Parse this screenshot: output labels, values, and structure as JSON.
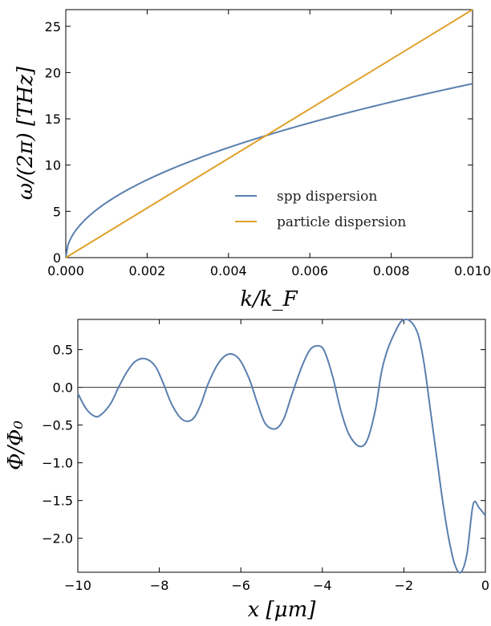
{
  "chart_data": [
    {
      "type": "line",
      "xlabel": "k/k_F",
      "ylabel": "ω/(2π) [THz]",
      "xlim": [
        0,
        0.01
      ],
      "ylim": [
        0,
        26.8
      ],
      "xticks": [
        "0.000",
        "0.002",
        "0.004",
        "0.006",
        "0.008",
        "0.010"
      ],
      "xtick_values": [
        0,
        0.002,
        0.004,
        0.006,
        0.008,
        0.01
      ],
      "yticks": [
        "0",
        "5",
        "10",
        "15",
        "20",
        "25"
      ],
      "ytick_values": [
        0,
        5,
        10,
        15,
        20,
        25
      ],
      "grid": false,
      "legend_position": "bottom-right",
      "series": [
        {
          "name": "spp dispersion",
          "color": "#5a7fae",
          "x": [
            0,
            0.0002,
            0.0005,
            0.001,
            0.0015,
            0.002,
            0.003,
            0.004,
            0.005,
            0.006,
            0.007,
            0.008,
            0.009,
            0.01
          ],
          "y": [
            0,
            2.65,
            4.2,
            5.9,
            7.25,
            8.4,
            10.3,
            11.9,
            13.3,
            14.6,
            15.7,
            16.8,
            17.8,
            18.8
          ]
        },
        {
          "name": "particle dispersion",
          "color": "#e0a12a",
          "x": [
            0,
            0.01
          ],
          "y": [
            0,
            26.8
          ]
        }
      ]
    },
    {
      "type": "line",
      "xlabel": "x [μm]",
      "ylabel": "Φ/Φ₀",
      "xlim": [
        -10,
        0
      ],
      "ylim": [
        -2.45,
        0.9
      ],
      "xticks": [
        "−10",
        "−8",
        "−6",
        "−4",
        "−2",
        "0"
      ],
      "xtick_values": [
        -10,
        -8,
        -6,
        -4,
        -2,
        0
      ],
      "yticks": [
        "0.5",
        "0.0",
        "−0.5",
        "−1.0",
        "−1.5",
        "−2.0"
      ],
      "ytick_values": [
        0.5,
        0,
        -0.5,
        -1,
        -1.5,
        -2
      ],
      "grid": false,
      "reference_line_y": 0,
      "series": [
        {
          "color": "#5a7fae",
          "x": [
            -10,
            -9.8,
            -9.6,
            -9.45,
            -9.2,
            -9.0,
            -8.8,
            -8.6,
            -8.35,
            -8.1,
            -7.9,
            -7.7,
            -7.45,
            -7.2,
            -7.0,
            -6.8,
            -6.55,
            -6.3,
            -6.05,
            -5.8,
            -5.6,
            -5.4,
            -5.15,
            -4.95,
            -4.75,
            -4.5,
            -4.3,
            -4.1,
            -3.95,
            -3.75,
            -3.55,
            -3.35,
            -3.1,
            -2.9,
            -2.7,
            -2.55,
            -2.4,
            -2.2,
            -2.05,
            -1.85,
            -1.65,
            -1.5,
            -1.35,
            -1.2,
            -1.05,
            -0.9,
            -0.75,
            -0.6,
            -0.45,
            -0.3,
            -0.15,
            0
          ],
          "y": [
            -0.08,
            -0.28,
            -0.38,
            -0.37,
            -0.22,
            0.0,
            0.2,
            0.34,
            0.38,
            0.28,
            0.05,
            -0.22,
            -0.42,
            -0.43,
            -0.25,
            0.05,
            0.32,
            0.44,
            0.38,
            0.12,
            -0.2,
            -0.48,
            -0.55,
            -0.42,
            -0.1,
            0.28,
            0.5,
            0.55,
            0.48,
            0.15,
            -0.3,
            -0.62,
            -0.78,
            -0.7,
            -0.3,
            0.2,
            0.5,
            0.75,
            0.88,
            0.88,
            0.7,
            0.3,
            -0.3,
            -0.9,
            -1.5,
            -2.0,
            -2.35,
            -2.45,
            -2.2,
            -1.55,
            -1.6,
            -1.7
          ]
        }
      ]
    }
  ],
  "legend": {
    "items": [
      {
        "label": "spp dispersion",
        "color": "#5a7fae"
      },
      {
        "label": "particle dispersion",
        "color": "#e0a12a"
      }
    ]
  }
}
